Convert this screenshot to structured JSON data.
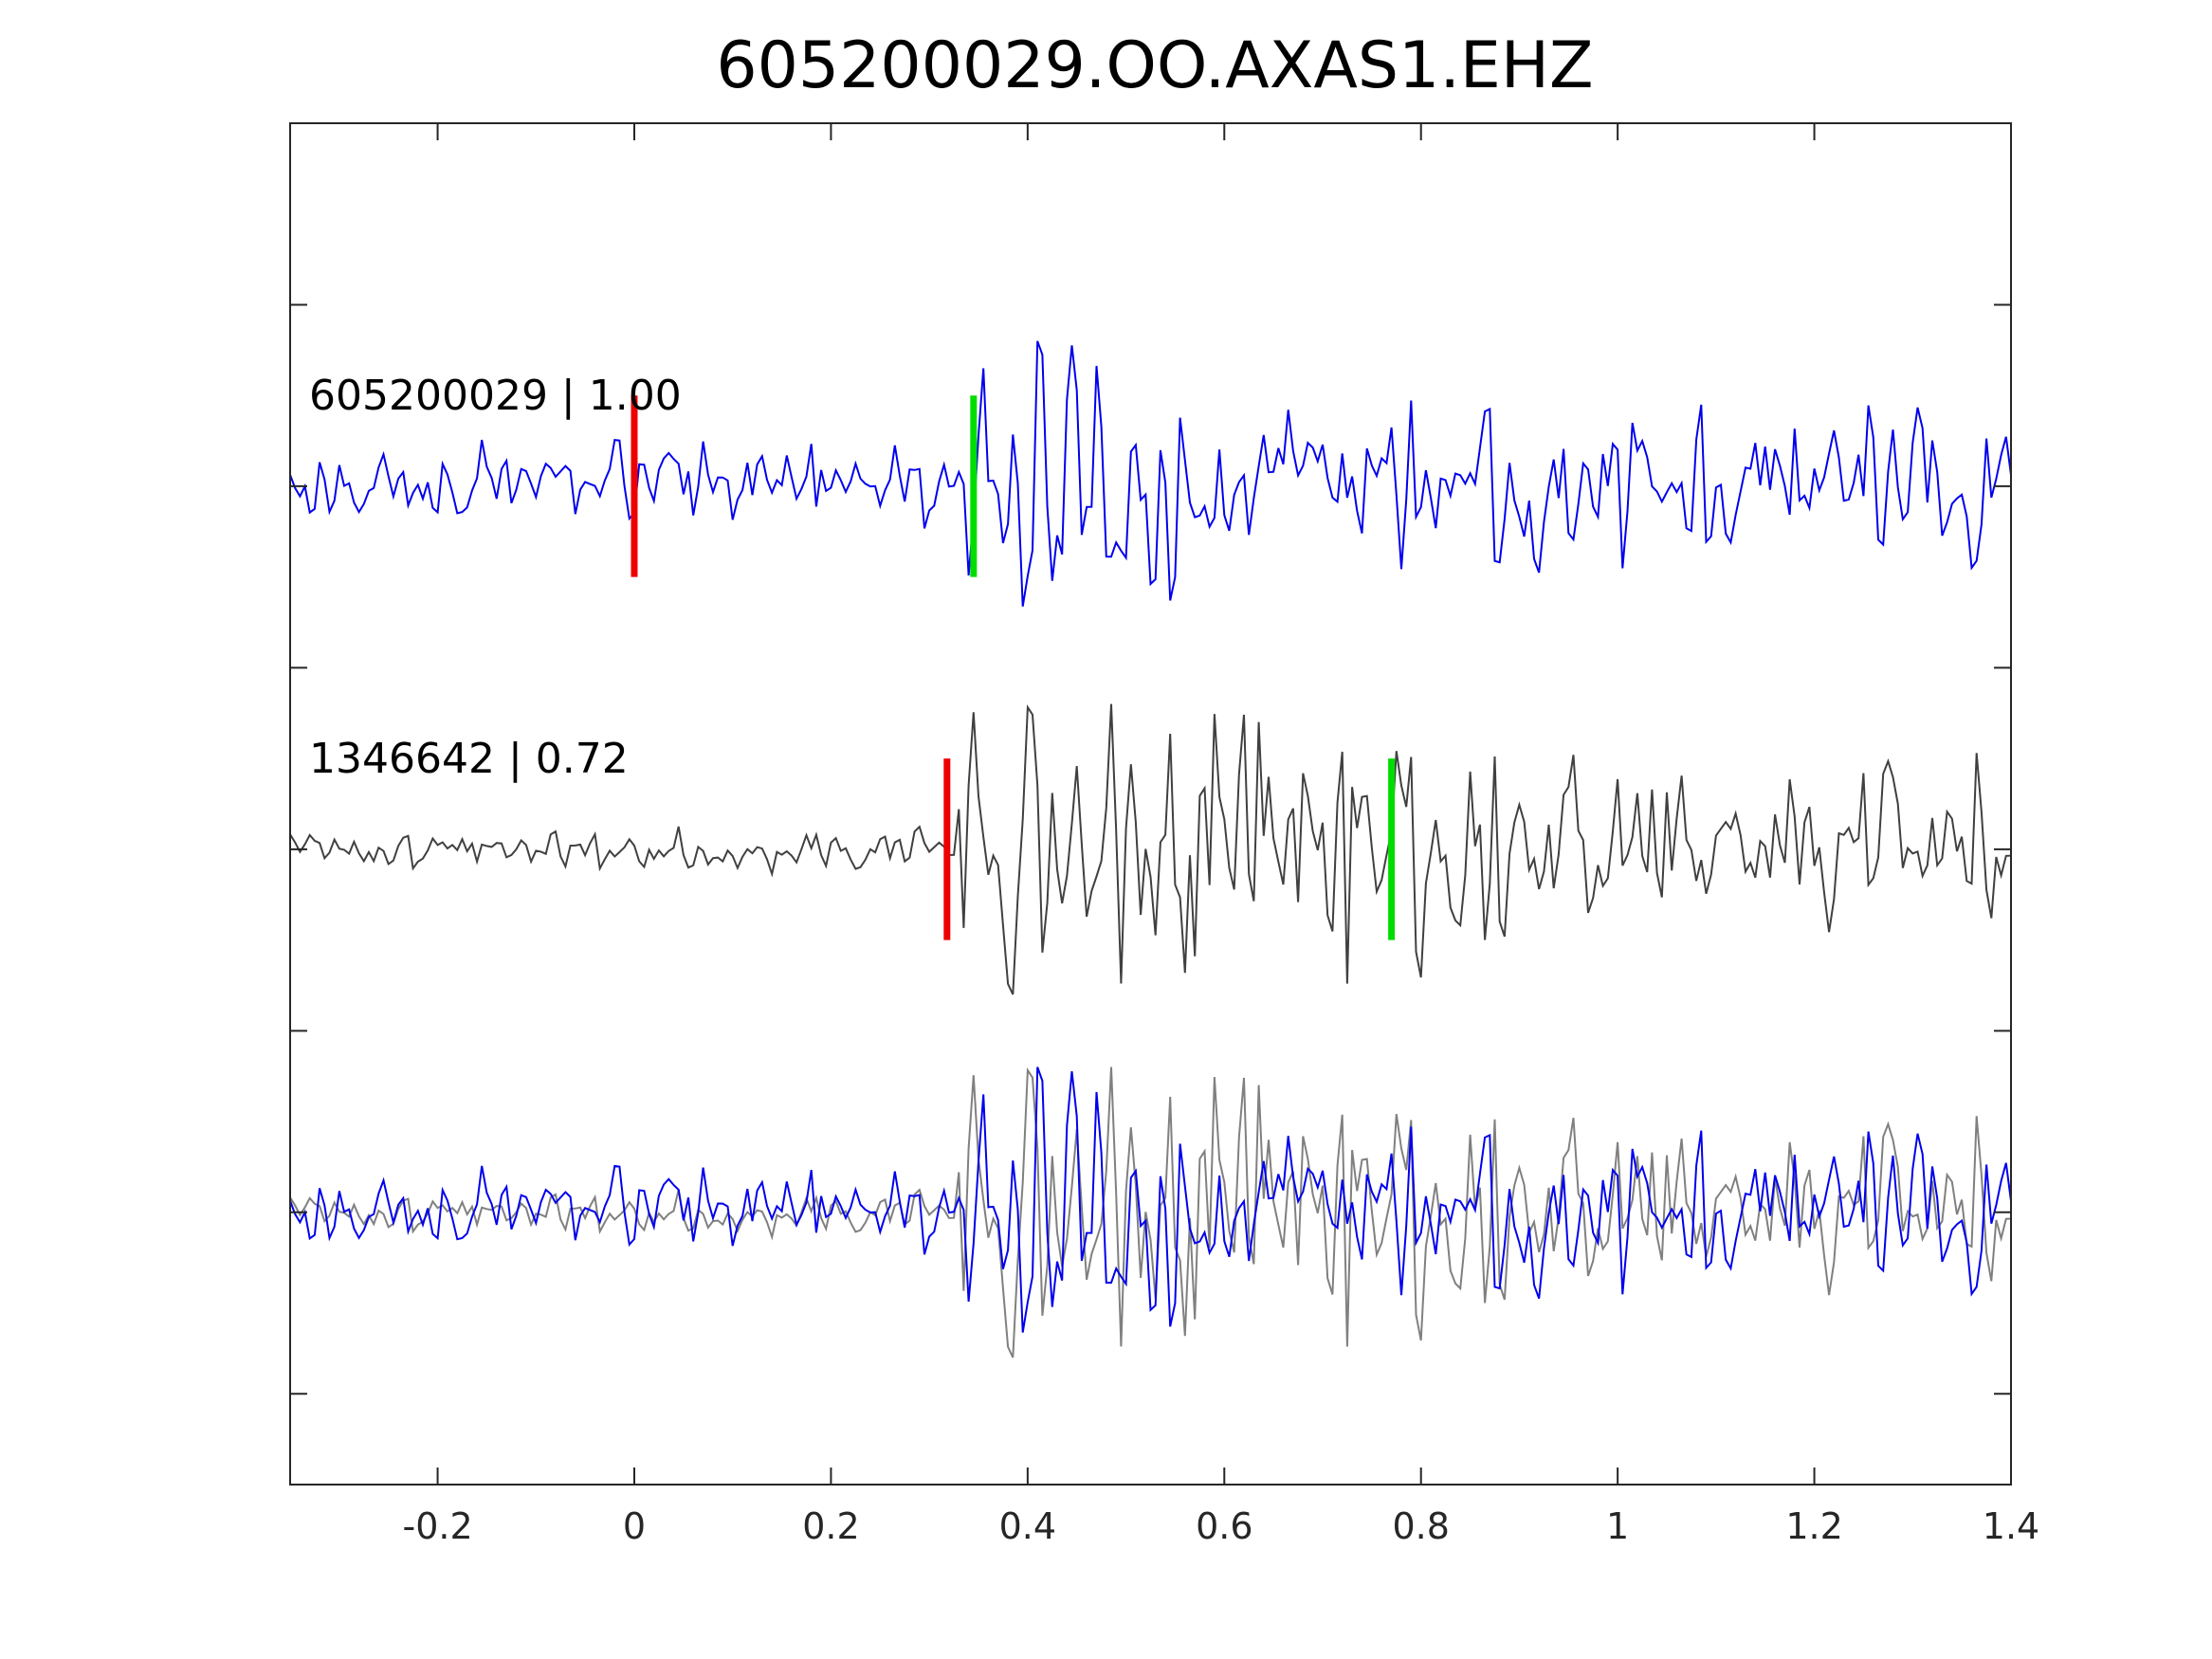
{
  "chart_data": {
    "type": "line",
    "title": "605200029.OO.AXAS1.EHZ",
    "xlabel": "",
    "ylabel": "",
    "xlim": [
      -0.35,
      1.4
    ],
    "ylim": [
      -0.25,
      3.5
    ],
    "x_ticks": [
      "-0.2",
      "0",
      "0.2",
      "0.4",
      "0.6",
      "0.8",
      "1",
      "1.2",
      "1.4"
    ],
    "x_tick_values": [
      -0.2,
      0,
      0.2,
      0.4,
      0.6,
      0.8,
      1.0,
      1.2,
      1.4
    ],
    "y_tick_values": [
      0,
      0.5,
      1,
      1.5,
      2,
      2.5,
      3
    ],
    "y_ticks_labeled": false,
    "grid": false,
    "traces": [
      {
        "label": "605200029 | 1.00",
        "baseline": 2.5,
        "color": "#0000ee",
        "picks": [
          {
            "phase_color": "#ee0000",
            "x": 0.0
          },
          {
            "phase_color": "#00dd00",
            "x": 0.345
          }
        ]
      },
      {
        "label": "1346642 | 0.72",
        "baseline": 1.5,
        "color": "#404040",
        "picks": [
          {
            "phase_color": "#ee0000",
            "x": 0.318
          },
          {
            "phase_color": "#00dd00",
            "x": 0.77
          }
        ]
      },
      {
        "label": "",
        "baseline": 0.5,
        "overlay": true,
        "colors": [
          "#808080",
          "#0000ee"
        ]
      }
    ],
    "sample_interval": 0.005
  },
  "colors": {
    "trace_primary": "#0000ee",
    "trace_secondary": "#404040",
    "trace_overlay": "#808080",
    "p_pick": "#ee0000",
    "s_pick": "#00dd00"
  }
}
